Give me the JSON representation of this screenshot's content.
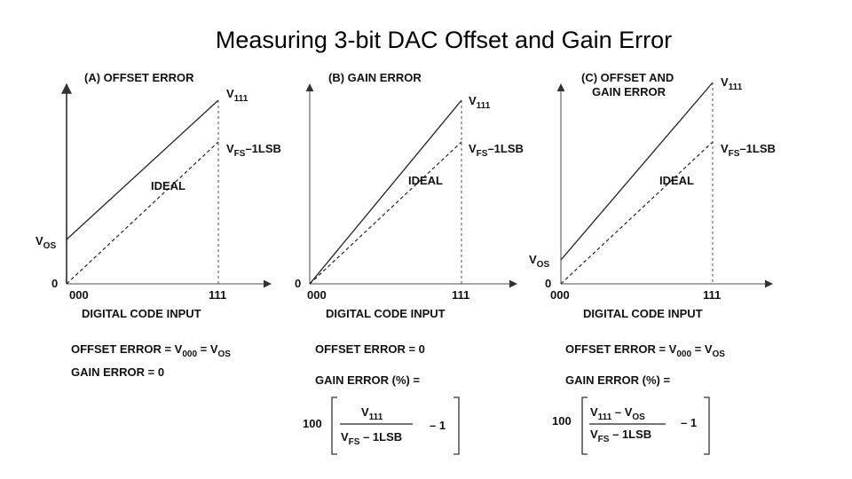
{
  "slide": {
    "title": "Measuring 3-bit DAC Offset and Gain Error"
  },
  "panels": [
    {
      "title_lines": [
        "(A) OFFSET ERROR"
      ],
      "v111": {
        "main": "V",
        "sub": "111"
      },
      "vfs": {
        "main": "V",
        "sub": "FS",
        "rest": "–1LSB"
      },
      "ideal_label": "IDEAL",
      "vos": {
        "main": "V",
        "sub": "OS"
      },
      "zero_label": "0",
      "x_start": "000",
      "x_end": "111",
      "x_axis_label": "DIGITAL CODE INPUT",
      "eq1": "OFFSET ERROR = V",
      "eq1_sub": "000",
      "eq1_mid": " = V",
      "eq1_sub2": "OS",
      "eq2": "GAIN ERROR = 0"
    },
    {
      "title_lines": [
        "(B) GAIN ERROR"
      ],
      "v111": {
        "main": "V",
        "sub": "111"
      },
      "vfs": {
        "main": "V",
        "sub": "FS",
        "rest": "–1LSB"
      },
      "ideal_label": "IDEAL",
      "zero_label": "0",
      "x_start": "000",
      "x_end": "111",
      "x_axis_label": "DIGITAL CODE INPUT",
      "eq1": "OFFSET ERROR = 0",
      "eq2": "GAIN ERROR (%) =",
      "formula": {
        "factor": "100",
        "num_main": "V",
        "num_sub": "111",
        "den_main": "V",
        "den_sub": "FS",
        "den_rest": " – 1LSB",
        "tail": "– 1"
      }
    },
    {
      "title_lines": [
        "(C) OFFSET AND",
        "GAIN ERROR"
      ],
      "v111": {
        "main": "V",
        "sub": "111"
      },
      "vfs": {
        "main": "V",
        "sub": "FS",
        "rest": "–1LSB"
      },
      "ideal_label": "IDEAL",
      "vos": {
        "main": "V",
        "sub": "OS"
      },
      "zero_label": "0",
      "x_start": "000",
      "x_end": "111",
      "x_axis_label": "DIGITAL CODE INPUT",
      "eq1": "OFFSET ERROR = V",
      "eq1_sub": "000",
      "eq1_mid": " = V",
      "eq1_sub2": "OS",
      "eq2": "GAIN ERROR (%) =",
      "formula": {
        "factor": "100",
        "num_main": "V",
        "num_sub": "111",
        "num_rest": " – V",
        "num_sub2": "OS",
        "den_main": "V",
        "den_sub": "FS",
        "den_rest": " – 1LSB",
        "tail": "– 1"
      }
    }
  ]
}
